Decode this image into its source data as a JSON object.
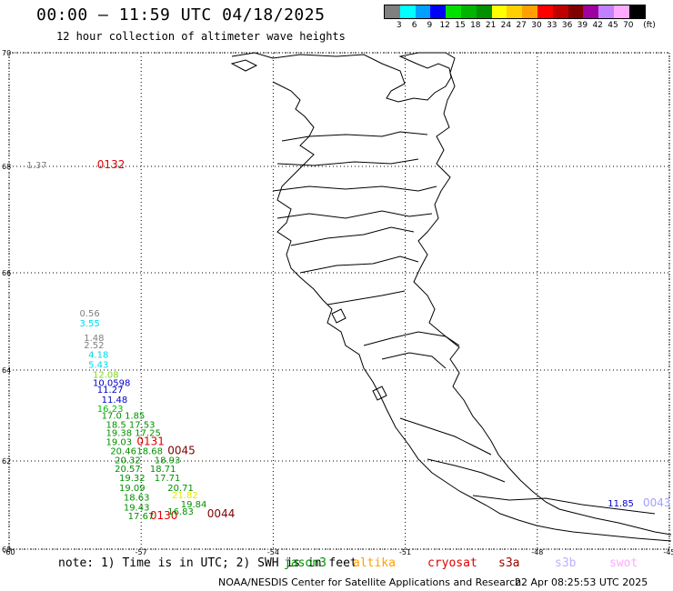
{
  "header": {
    "title": "00:00 – 11:59 UTC 04/18/2025",
    "subtitle": "12 hour collection of altimeter wave heights"
  },
  "legend": {
    "unit": "(ft)",
    "colors": [
      "#7f7f7f",
      "#00ffff",
      "#00a0ff",
      "#0000ff",
      "#00e000",
      "#00b400",
      "#009000",
      "#ffff00",
      "#ffd000",
      "#ffa000",
      "#ff0000",
      "#c00000",
      "#800000",
      "#a000a0",
      "#c080ff",
      "#ffaaff",
      "#000000"
    ],
    "ticks": [
      "3",
      "6",
      "9",
      "12",
      "15",
      "18",
      "21",
      "24",
      "27",
      "30",
      "33",
      "36",
      "39",
      "42",
      "45",
      "70"
    ]
  },
  "axes": {
    "lat_labels": [
      "70",
      "68",
      "66",
      "64",
      "62",
      "60"
    ],
    "lon_labels": [
      "-60",
      "-57",
      "-54",
      "-51",
      "-48",
      "-45"
    ]
  },
  "observations": [
    {
      "lon": -59.6,
      "lat": 67.97,
      "text": "1.37",
      "color": "#7f7f7f"
    },
    {
      "lon": -58.0,
      "lat": 67.97,
      "text": "0132",
      "color": "#e00000"
    },
    {
      "lon": -58.4,
      "lat": 65.1,
      "text": "0.56",
      "color": "#7f7f7f"
    },
    {
      "lon": -58.4,
      "lat": 64.9,
      "text": "3.55",
      "color": "#00d8e8"
    },
    {
      "lon": -58.3,
      "lat": 64.6,
      "text": "1.48",
      "color": "#7f7f7f"
    },
    {
      "lon": -58.3,
      "lat": 64.45,
      "text": "2.52",
      "color": "#7f7f7f"
    },
    {
      "lon": -58.2,
      "lat": 64.25,
      "text": "4.18",
      "color": "#00d8e8"
    },
    {
      "lon": -58.2,
      "lat": 64.05,
      "text": "5.43",
      "color": "#00d8e8"
    },
    {
      "lon": -58.1,
      "lat": 63.83,
      "text": "12.08",
      "color": "#7fd820"
    },
    {
      "lon": -58.1,
      "lat": 63.65,
      "text": "10.0598",
      "color": "#0000c8"
    },
    {
      "lon": -58.0,
      "lat": 63.5,
      "text": "11.27",
      "color": "#0000c8"
    },
    {
      "lon": -57.9,
      "lat": 63.28,
      "text": "11.48",
      "color": "#0000c8"
    },
    {
      "lon": -58.0,
      "lat": 63.08,
      "text": "16.23",
      "color": "#00c000"
    },
    {
      "lon": -57.9,
      "lat": 62.93,
      "text": "17.0 1.85",
      "color": "#009000"
    },
    {
      "lon": -57.8,
      "lat": 62.73,
      "text": "18.5 17.53",
      "color": "#009000"
    },
    {
      "lon": -57.8,
      "lat": 62.55,
      "text": "19.38 17.25",
      "color": "#009000"
    },
    {
      "lon": -57.8,
      "lat": 62.35,
      "text": "19.03",
      "color": "#009000"
    },
    {
      "lon": -57.1,
      "lat": 62.35,
      "text": "0131",
      "color": "#e00000"
    },
    {
      "lon": -57.7,
      "lat": 62.15,
      "text": "20.46",
      "color": "#009000"
    },
    {
      "lon": -57.1,
      "lat": 62.15,
      "text": "18.68",
      "color": "#009000"
    },
    {
      "lon": -56.4,
      "lat": 62.15,
      "text": "0045",
      "color": "#800000"
    },
    {
      "lon": -57.6,
      "lat": 61.95,
      "text": "20.32",
      "color": "#009000"
    },
    {
      "lon": -56.7,
      "lat": 61.95,
      "text": "18.93",
      "color": "#009000"
    },
    {
      "lon": -57.6,
      "lat": 61.75,
      "text": "20.57",
      "color": "#009000"
    },
    {
      "lon": -56.8,
      "lat": 61.75,
      "text": "18.71",
      "color": "#009000"
    },
    {
      "lon": -57.5,
      "lat": 61.55,
      "text": "19.32",
      "color": "#009000"
    },
    {
      "lon": -56.7,
      "lat": 61.55,
      "text": "17.71",
      "color": "#009000"
    },
    {
      "lon": -57.5,
      "lat": 61.32,
      "text": "19.09",
      "color": "#009000"
    },
    {
      "lon": -56.4,
      "lat": 61.32,
      "text": "20.71",
      "color": "#009000"
    },
    {
      "lon": -57.4,
      "lat": 61.1,
      "text": "18.63",
      "color": "#009000"
    },
    {
      "lon": -56.3,
      "lat": 61.15,
      "text": "21.82",
      "color": "#e8e800"
    },
    {
      "lon": -57.4,
      "lat": 60.88,
      "text": "19.43",
      "color": "#009000"
    },
    {
      "lon": -56.1,
      "lat": 60.95,
      "text": "19.84",
      "color": "#009000"
    },
    {
      "lon": -57.3,
      "lat": 60.68,
      "text": "17.67",
      "color": "#009000"
    },
    {
      "lon": -56.8,
      "lat": 60.68,
      "text": "0130",
      "color": "#e00000"
    },
    {
      "lon": -56.4,
      "lat": 60.78,
      "text": "16.83",
      "color": "#009000"
    },
    {
      "lon": -55.5,
      "lat": 60.72,
      "text": "0044",
      "color": "#800000"
    },
    {
      "lon": -46.4,
      "lat": 60.97,
      "text": "11.85",
      "color": "#0000c8"
    },
    {
      "lon": -45.6,
      "lat": 60.97,
      "text": "0043",
      "color": "#a0a0ff"
    }
  ],
  "footer": {
    "note": "note:  1) Time is in UTC; 2) SWH is in feet",
    "satellites": [
      {
        "name": "jason3",
        "color": "#009000"
      },
      {
        "name": "altika",
        "color": "#ffa000"
      },
      {
        "name": "cryosat",
        "color": "#e00000"
      },
      {
        "name": "s3a",
        "color": "#a00000"
      },
      {
        "name": "s3b",
        "color": "#c0b0ff"
      },
      {
        "name": "swot",
        "color": "#ffaaff"
      }
    ],
    "credit": "NOAA/NESDIS Center for Satellite Applications and Research",
    "timestamp": "22 Apr 08:25:53 UTC 2025"
  }
}
